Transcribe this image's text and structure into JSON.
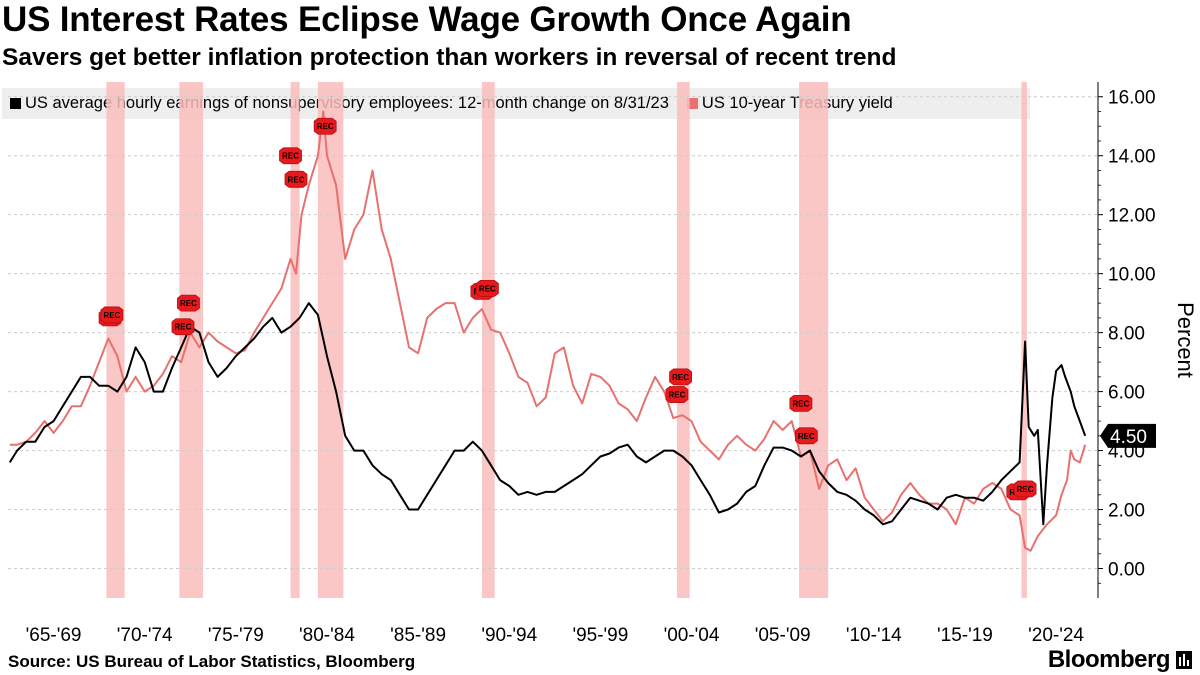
{
  "title": "US Interest Rates Eclipse Wage Growth Once Again",
  "subtitle": "Savers get better inflation protection than workers in reversal of recent trend",
  "source": "Source: US Bureau of Labor Statistics, Bloomberg",
  "brand": "Bloomberg",
  "colors": {
    "wages": "#000000",
    "treasury": "#e8716f",
    "recession": "#f9bcbc",
    "marker": "#e8191c",
    "gridline": "#cccccc",
    "legend_bg": "#eeeeee"
  },
  "chart_data": {
    "type": "line",
    "ylabel": "Percent",
    "ylim": [
      -1,
      16.5
    ],
    "yticks": [
      0,
      2,
      4,
      6,
      8,
      10,
      12,
      14,
      16
    ],
    "ytick_labels": [
      "0.00",
      "2.00",
      "4.00",
      "6.00",
      "8.00",
      "10.00",
      "12.00",
      "14.00",
      "16.00"
    ],
    "xlim": [
      1964.5,
      2024.3
    ],
    "x_tick_labels": [
      {
        "label": "'65-'69",
        "x": 1967
      },
      {
        "label": "'70-'74",
        "x": 1972
      },
      {
        "label": "'75-'79",
        "x": 1977
      },
      {
        "label": "'80-'84",
        "x": 1982
      },
      {
        "label": "'85-'89",
        "x": 1987
      },
      {
        "label": "'90-'94",
        "x": 1992
      },
      {
        "label": "'95-'99",
        "x": 1997
      },
      {
        "label": "'00-'04",
        "x": 2002
      },
      {
        "label": "'05-'09",
        "x": 2007
      },
      {
        "label": "'10-'14",
        "x": 2012
      },
      {
        "label": "'15-'19",
        "x": 2017
      },
      {
        "label": "'20-'24",
        "x": 2022
      }
    ],
    "recessions": [
      [
        1969.9,
        1970.9
      ],
      [
        1973.9,
        1975.2
      ],
      [
        1980.0,
        1980.5
      ],
      [
        1981.5,
        1982.9
      ],
      [
        1990.5,
        1991.2
      ],
      [
        2001.2,
        2001.9
      ],
      [
        2007.9,
        2009.5
      ],
      [
        2020.1,
        2020.4
      ]
    ],
    "rec_markers": [
      {
        "x": 1970.1,
        "y": 8.5,
        "label": "REC"
      },
      {
        "x": 1970.2,
        "y": 8.6,
        "label": "REC"
      },
      {
        "x": 1974.1,
        "y": 8.2,
        "label": "REC"
      },
      {
        "x": 1974.4,
        "y": 9.0,
        "label": "REC"
      },
      {
        "x": 1980.0,
        "y": 14.0,
        "label": "REC"
      },
      {
        "x": 1980.3,
        "y": 13.2,
        "label": "REC"
      },
      {
        "x": 1981.9,
        "y": 15.0,
        "label": "REC"
      },
      {
        "x": 1990.5,
        "y": 9.4,
        "label": "REC"
      },
      {
        "x": 1990.8,
        "y": 9.5,
        "label": "REC"
      },
      {
        "x": 2001.4,
        "y": 6.5,
        "label": "REC"
      },
      {
        "x": 2001.2,
        "y": 5.9,
        "label": "REC"
      },
      {
        "x": 2008.0,
        "y": 5.6,
        "label": "REC"
      },
      {
        "x": 2008.3,
        "y": 4.5,
        "label": "REC"
      },
      {
        "x": 2019.9,
        "y": 2.6,
        "label": "REC"
      },
      {
        "x": 2020.3,
        "y": 2.7,
        "label": "REC"
      }
    ],
    "last_value_label": "4.50",
    "series": [
      {
        "name": "US average hourly earnings of nonsupervisory employees: 12-month change on 8/31/23",
        "color": "#000000",
        "x": [
          1964.6,
          1965.0,
          1965.5,
          1966.0,
          1966.5,
          1967.0,
          1967.5,
          1968.0,
          1968.5,
          1969.0,
          1969.5,
          1970.0,
          1970.5,
          1971.0,
          1971.5,
          1972.0,
          1972.5,
          1973.0,
          1973.5,
          1974.0,
          1974.5,
          1975.0,
          1975.5,
          1976.0,
          1976.5,
          1977.0,
          1977.5,
          1978.0,
          1978.5,
          1979.0,
          1979.5,
          1980.0,
          1980.5,
          1981.0,
          1981.5,
          1982.0,
          1982.5,
          1983.0,
          1983.5,
          1984.0,
          1984.5,
          1985.0,
          1985.5,
          1986.0,
          1986.5,
          1987.0,
          1987.5,
          1988.0,
          1988.5,
          1989.0,
          1989.5,
          1990.0,
          1990.5,
          1991.0,
          1991.5,
          1992.0,
          1992.5,
          1993.0,
          1993.5,
          1994.0,
          1994.5,
          1995.0,
          1995.5,
          1996.0,
          1996.5,
          1997.0,
          1997.5,
          1998.0,
          1998.5,
          1999.0,
          1999.5,
          2000.0,
          2000.5,
          2001.0,
          2001.5,
          2002.0,
          2002.5,
          2003.0,
          2003.5,
          2004.0,
          2004.5,
          2005.0,
          2005.5,
          2006.0,
          2006.5,
          2007.0,
          2007.5,
          2008.0,
          2008.5,
          2009.0,
          2009.5,
          2010.0,
          2010.5,
          2011.0,
          2011.5,
          2012.0,
          2012.5,
          2013.0,
          2013.5,
          2014.0,
          2014.5,
          2015.0,
          2015.5,
          2016.0,
          2016.5,
          2017.0,
          2017.5,
          2018.0,
          2018.5,
          2019.0,
          2019.5,
          2020.0,
          2020.3,
          2020.5,
          2020.8,
          2021.0,
          2021.3,
          2021.5,
          2021.8,
          2022.0,
          2022.3,
          2022.5,
          2022.8,
          2023.0,
          2023.3,
          2023.6
        ],
        "y": [
          3.6,
          4.0,
          4.3,
          4.3,
          4.8,
          5.0,
          5.5,
          6.0,
          6.5,
          6.5,
          6.2,
          6.2,
          6.0,
          6.5,
          7.5,
          7.0,
          6.0,
          6.0,
          6.8,
          7.5,
          8.2,
          8.0,
          7.0,
          6.5,
          6.8,
          7.2,
          7.5,
          7.8,
          8.2,
          8.5,
          8.0,
          8.2,
          8.5,
          9.0,
          8.6,
          7.2,
          6.0,
          4.5,
          4.0,
          4.0,
          3.5,
          3.2,
          3.0,
          2.5,
          2.0,
          2.0,
          2.5,
          3.0,
          3.5,
          4.0,
          4.0,
          4.3,
          4.0,
          3.5,
          3.0,
          2.8,
          2.5,
          2.6,
          2.5,
          2.6,
          2.6,
          2.8,
          3.0,
          3.2,
          3.5,
          3.8,
          3.9,
          4.1,
          4.2,
          3.8,
          3.6,
          3.8,
          4.0,
          4.0,
          3.8,
          3.5,
          3.0,
          2.5,
          1.9,
          2.0,
          2.2,
          2.6,
          2.8,
          3.5,
          4.1,
          4.1,
          4.0,
          3.8,
          4.0,
          3.3,
          2.9,
          2.6,
          2.5,
          2.3,
          2.0,
          1.8,
          1.5,
          1.6,
          2.0,
          2.4,
          2.3,
          2.2,
          2.0,
          2.4,
          2.5,
          2.4,
          2.4,
          2.3,
          2.6,
          3.0,
          3.3,
          3.6,
          7.7,
          4.8,
          4.5,
          4.7,
          1.5,
          3.5,
          5.8,
          6.7,
          6.9,
          6.5,
          6.0,
          5.5,
          5.0,
          4.5
        ]
      },
      {
        "name": "US 10-year Treasury yield",
        "color": "#e8716f",
        "x": [
          1964.6,
          1965.0,
          1965.5,
          1966.0,
          1966.5,
          1967.0,
          1967.5,
          1968.0,
          1968.5,
          1969.0,
          1969.5,
          1970.0,
          1970.5,
          1971.0,
          1971.5,
          1972.0,
          1972.5,
          1973.0,
          1973.5,
          1974.0,
          1974.5,
          1975.0,
          1975.5,
          1976.0,
          1976.5,
          1977.0,
          1977.5,
          1978.0,
          1978.5,
          1979.0,
          1979.5,
          1980.0,
          1980.3,
          1980.6,
          1981.0,
          1981.5,
          1981.8,
          1982.0,
          1982.5,
          1983.0,
          1983.5,
          1984.0,
          1984.5,
          1985.0,
          1985.5,
          1986.0,
          1986.5,
          1987.0,
          1987.5,
          1988.0,
          1988.5,
          1989.0,
          1989.5,
          1990.0,
          1990.5,
          1991.0,
          1991.5,
          1992.0,
          1992.5,
          1993.0,
          1993.5,
          1994.0,
          1994.5,
          1995.0,
          1995.5,
          1996.0,
          1996.5,
          1997.0,
          1997.5,
          1998.0,
          1998.5,
          1999.0,
          1999.5,
          2000.0,
          2000.5,
          2001.0,
          2001.5,
          2002.0,
          2002.5,
          2003.0,
          2003.5,
          2004.0,
          2004.5,
          2005.0,
          2005.5,
          2006.0,
          2006.5,
          2007.0,
          2007.5,
          2008.0,
          2008.5,
          2009.0,
          2009.5,
          2010.0,
          2010.5,
          2011.0,
          2011.5,
          2012.0,
          2012.5,
          2013.0,
          2013.5,
          2014.0,
          2014.5,
          2015.0,
          2015.5,
          2016.0,
          2016.5,
          2017.0,
          2017.5,
          2018.0,
          2018.5,
          2019.0,
          2019.5,
          2020.0,
          2020.3,
          2020.6,
          2021.0,
          2021.5,
          2022.0,
          2022.3,
          2022.6,
          2022.8,
          2023.0,
          2023.3,
          2023.6
        ],
        "y": [
          4.2,
          4.2,
          4.3,
          4.6,
          5.0,
          4.6,
          5.0,
          5.5,
          5.5,
          6.2,
          7.0,
          7.8,
          7.2,
          6.0,
          6.5,
          6.0,
          6.2,
          6.6,
          7.2,
          7.0,
          8.0,
          7.5,
          8.0,
          7.7,
          7.5,
          7.3,
          7.4,
          8.0,
          8.5,
          9.0,
          9.5,
          10.5,
          10.0,
          12.0,
          13.0,
          14.0,
          15.5,
          14.0,
          13.0,
          10.5,
          11.5,
          12.0,
          13.5,
          11.5,
          10.5,
          9.0,
          7.5,
          7.3,
          8.5,
          8.8,
          9.0,
          9.0,
          8.0,
          8.5,
          8.8,
          8.1,
          8.0,
          7.3,
          6.5,
          6.3,
          5.5,
          5.8,
          7.3,
          7.5,
          6.2,
          5.6,
          6.6,
          6.5,
          6.2,
          5.6,
          5.4,
          5.0,
          5.8,
          6.5,
          6.0,
          5.1,
          5.2,
          5.0,
          4.3,
          4.0,
          3.7,
          4.2,
          4.5,
          4.2,
          4.0,
          4.4,
          5.0,
          4.7,
          5.0,
          3.8,
          4.0,
          2.7,
          3.5,
          3.7,
          3.0,
          3.4,
          2.4,
          2.0,
          1.6,
          1.9,
          2.5,
          2.9,
          2.5,
          2.2,
          2.2,
          2.0,
          1.5,
          2.4,
          2.2,
          2.7,
          2.9,
          2.7,
          2.0,
          1.8,
          0.7,
          0.6,
          1.1,
          1.5,
          1.8,
          2.5,
          3.0,
          4.0,
          3.7,
          3.6,
          4.2
        ]
      }
    ]
  }
}
